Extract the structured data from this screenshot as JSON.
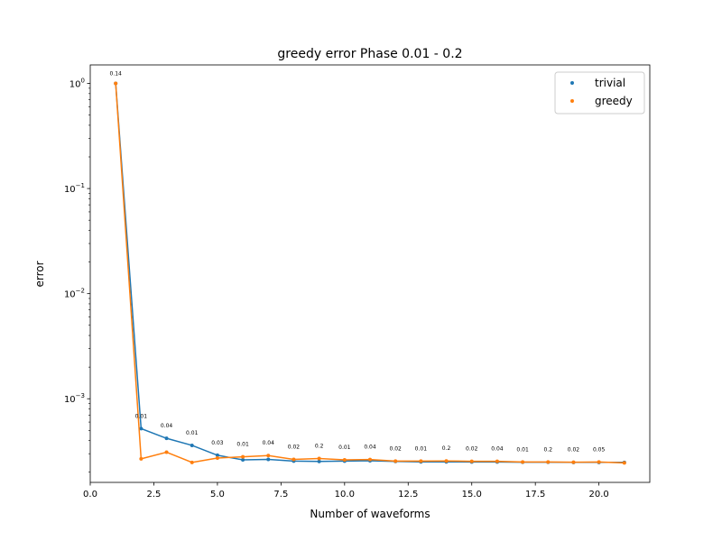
{
  "chart_data": {
    "type": "line",
    "title": "greedy error Phase 0.01 - 0.2",
    "xlabel": "Number of waveforms",
    "ylabel": "error",
    "xlim": [
      0.0,
      22.0
    ],
    "ylim": [
      0.00016,
      1.5
    ],
    "yscale": "log",
    "grid": false,
    "legend_position": "top-right",
    "x_ticks": [
      "0.0",
      "2.5",
      "5.0",
      "7.5",
      "10.0",
      "12.5",
      "15.0",
      "17.5",
      "20.0"
    ],
    "y_ticks": [
      "10^0",
      "10^-1",
      "10^-2",
      "10^-3"
    ],
    "x": [
      1,
      2,
      3,
      4,
      5,
      6,
      7,
      8,
      9,
      10,
      11,
      12,
      13,
      14,
      15,
      16,
      17,
      18,
      19,
      20,
      21
    ],
    "series": [
      {
        "name": "trivial",
        "color": "#1f77b4",
        "values": [
          1.0,
          0.00052,
          0.00042,
          0.00036,
          0.00029,
          0.000262,
          0.000265,
          0.000255,
          0.000253,
          0.000255,
          0.000257,
          0.000253,
          0.000251,
          0.000251,
          0.00025,
          0.00025,
          0.000249,
          0.000249,
          0.000248,
          0.000248,
          0.000248
        ]
      },
      {
        "name": "greedy",
        "color": "#ff7f0e",
        "values": [
          1.0,
          0.000268,
          0.00031,
          0.000248,
          0.000273,
          0.00028,
          0.000288,
          0.000265,
          0.00027,
          0.000262,
          0.000264,
          0.000255,
          0.000255,
          0.000256,
          0.000254,
          0.000254,
          0.00025,
          0.00025,
          0.000249,
          0.00025,
          0.000245
        ]
      }
    ],
    "point_labels": [
      "0.14",
      "0.01",
      "0.04",
      "0.01",
      "0.03",
      "0.01",
      "0.04",
      "0.02",
      "0.2",
      "0.01",
      "0.04",
      "0.02",
      "0.01",
      "0.2",
      "0.02",
      "0.04",
      "0.01",
      "0.2",
      "0.02",
      "0.05",
      ""
    ]
  }
}
